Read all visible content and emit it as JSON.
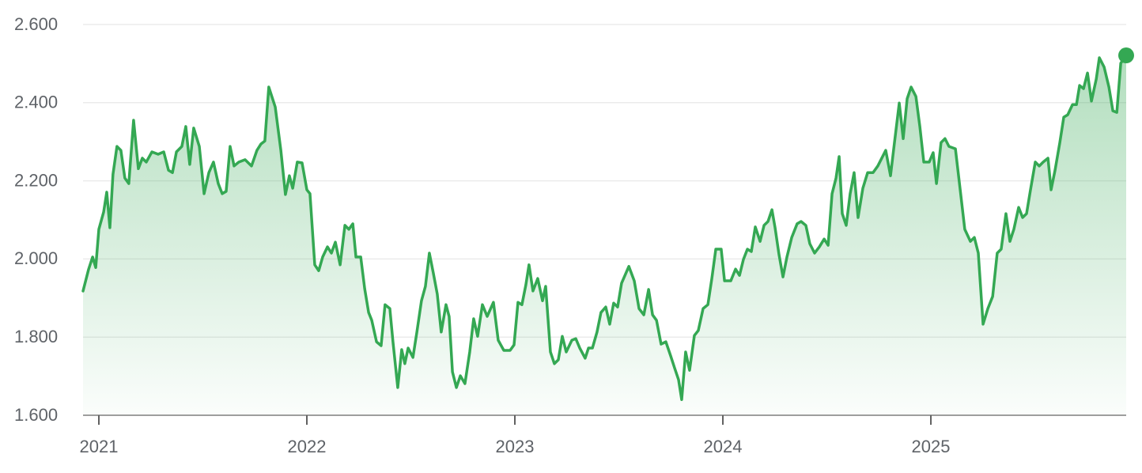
{
  "chart_data": {
    "type": "line",
    "color": "#34a853",
    "grid": true,
    "xlim": [
      2020.924,
      2025.939
    ],
    "ylim": [
      1600,
      2600
    ],
    "xticks": [
      2021,
      2022,
      2023,
      2024,
      2025
    ],
    "yticks": [
      {
        "value": 1600,
        "label": "1.600"
      },
      {
        "value": 1800,
        "label": "1.800"
      },
      {
        "value": 2000,
        "label": "2.000"
      },
      {
        "value": 2200,
        "label": "2.200"
      },
      {
        "value": 2400,
        "label": "2.400"
      },
      {
        "value": 2600,
        "label": "2.600"
      }
    ],
    "x": [
      2020.924,
      2020.951,
      2020.97,
      2020.985,
      2021.0,
      2021.023,
      2021.038,
      2021.053,
      2021.068,
      2021.087,
      2021.106,
      2021.125,
      2021.144,
      2021.167,
      2021.19,
      2021.209,
      2021.228,
      2021.255,
      2021.285,
      2021.312,
      2021.335,
      2021.354,
      2021.373,
      2021.399,
      2021.418,
      2021.437,
      2021.456,
      2021.483,
      2021.506,
      2021.529,
      2021.551,
      2021.574,
      2021.593,
      2021.612,
      2021.631,
      2021.65,
      2021.673,
      2021.703,
      2021.734,
      2021.76,
      2021.779,
      2021.798,
      2021.817,
      2021.848,
      2021.875,
      2021.897,
      2021.916,
      2021.932,
      2021.954,
      2021.977,
      2022.0,
      2022.015,
      2022.038,
      2022.057,
      2022.076,
      2022.099,
      2022.118,
      2022.137,
      2022.16,
      2022.183,
      2022.202,
      2022.221,
      2022.236,
      2022.259,
      2022.278,
      2022.297,
      2022.312,
      2022.335,
      2022.357,
      2022.376,
      2022.399,
      2022.414,
      2022.437,
      2022.456,
      2022.471,
      2022.487,
      2022.51,
      2022.529,
      2022.551,
      2022.57,
      2022.589,
      2022.608,
      2022.627,
      2022.646,
      2022.669,
      2022.684,
      2022.7,
      2022.719,
      2022.738,
      2022.76,
      2022.783,
      2022.802,
      2022.821,
      2022.844,
      2022.867,
      2022.897,
      2022.92,
      2022.947,
      2022.977,
      2022.996,
      2023.015,
      2023.034,
      2023.053,
      2023.068,
      2023.087,
      2023.11,
      2023.133,
      2023.148,
      2023.171,
      2023.19,
      2023.209,
      2023.228,
      2023.247,
      2023.274,
      2023.293,
      2023.312,
      2023.338,
      2023.354,
      2023.373,
      2023.395,
      2023.414,
      2023.437,
      2023.456,
      2023.475,
      2023.494,
      2023.513,
      2023.548,
      2023.574,
      2023.597,
      2023.62,
      2023.643,
      2023.662,
      2023.681,
      2023.703,
      2023.726,
      2023.749,
      2023.768,
      2023.787,
      2023.802,
      2023.821,
      2023.84,
      2023.863,
      2023.882,
      2023.905,
      2023.928,
      2023.947,
      2023.966,
      2023.992,
      2024.008,
      2024.038,
      2024.061,
      2024.08,
      2024.099,
      2024.118,
      2024.137,
      2024.156,
      2024.179,
      2024.198,
      2024.217,
      2024.236,
      2024.251,
      2024.27,
      2024.289,
      2024.308,
      2024.331,
      2024.357,
      2024.376,
      2024.399,
      2024.418,
      2024.441,
      2024.464,
      2024.487,
      2024.506,
      2024.525,
      2024.544,
      2024.559,
      2024.574,
      2024.593,
      2024.612,
      2024.631,
      2024.65,
      2024.673,
      2024.696,
      2024.722,
      2024.745,
      2024.764,
      2024.783,
      2024.806,
      2024.825,
      2024.848,
      2024.867,
      2024.886,
      2024.905,
      2024.928,
      2024.947,
      2024.966,
      2024.992,
      2025.011,
      2025.027,
      2025.049,
      2025.068,
      2025.087,
      2025.118,
      2025.141,
      2025.163,
      2025.19,
      2025.209,
      2025.228,
      2025.251,
      2025.274,
      2025.297,
      2025.319,
      2025.338,
      2025.361,
      2025.38,
      2025.399,
      2025.422,
      2025.441,
      2025.46,
      2025.479,
      2025.502,
      2025.521,
      2025.54,
      2025.563,
      2025.578,
      2025.597,
      2025.62,
      2025.639,
      2025.658,
      2025.681,
      2025.7,
      2025.715,
      2025.734,
      2025.753,
      2025.772,
      2025.795,
      2025.81,
      2025.833,
      2025.856,
      2025.875,
      2025.894,
      2025.913,
      2025.939
    ],
    "values": [
      1918,
      1974,
      2005,
      1978,
      2076,
      2120,
      2171,
      2080,
      2217,
      2288,
      2278,
      2207,
      2193,
      2355,
      2231,
      2258,
      2248,
      2274,
      2268,
      2274,
      2227,
      2221,
      2274,
      2288,
      2339,
      2242,
      2335,
      2288,
      2167,
      2221,
      2248,
      2193,
      2167,
      2173,
      2288,
      2238,
      2248,
      2254,
      2238,
      2278,
      2294,
      2302,
      2440,
      2389,
      2278,
      2165,
      2213,
      2181,
      2248,
      2246,
      2177,
      2167,
      1985,
      1970,
      2005,
      2031,
      2015,
      2043,
      1985,
      2086,
      2076,
      2090,
      2005,
      2005,
      1924,
      1863,
      1843,
      1788,
      1778,
      1883,
      1873,
      1788,
      1671,
      1768,
      1732,
      1772,
      1748,
      1813,
      1893,
      1930,
      2015,
      1964,
      1910,
      1813,
      1883,
      1853,
      1711,
      1671,
      1701,
      1681,
      1762,
      1847,
      1802,
      1883,
      1853,
      1889,
      1792,
      1766,
      1766,
      1780,
      1889,
      1883,
      1934,
      1985,
      1918,
      1950,
      1893,
      1930,
      1762,
      1732,
      1742,
      1802,
      1762,
      1792,
      1796,
      1772,
      1746,
      1772,
      1772,
      1813,
      1863,
      1877,
      1833,
      1887,
      1877,
      1938,
      1981,
      1944,
      1873,
      1857,
      1922,
      1857,
      1843,
      1782,
      1788,
      1752,
      1721,
      1691,
      1640,
      1762,
      1715,
      1804,
      1817,
      1873,
      1883,
      1950,
      2025,
      2025,
      1944,
      1944,
      1974,
      1958,
      1999,
      2025,
      2019,
      2082,
      2045,
      2086,
      2096,
      2126,
      2080,
      2011,
      1954,
      2005,
      2055,
      2090,
      2096,
      2086,
      2039,
      2015,
      2031,
      2051,
      2035,
      2167,
      2207,
      2262,
      2116,
      2086,
      2167,
      2221,
      2106,
      2181,
      2221,
      2221,
      2238,
      2258,
      2278,
      2213,
      2298,
      2399,
      2308,
      2410,
      2440,
      2416,
      2339,
      2248,
      2248,
      2272,
      2193,
      2298,
      2308,
      2288,
      2282,
      2177,
      2076,
      2045,
      2055,
      2015,
      1833,
      1873,
      1904,
      2015,
      2025,
      2116,
      2045,
      2076,
      2132,
      2106,
      2116,
      2177,
      2248,
      2238,
      2248,
      2258,
      2177,
      2227,
      2298,
      2363,
      2369,
      2395,
      2395,
      2444,
      2436,
      2476,
      2404,
      2460,
      2515,
      2491,
      2440,
      2379,
      2375,
      2501,
      2521
    ]
  }
}
